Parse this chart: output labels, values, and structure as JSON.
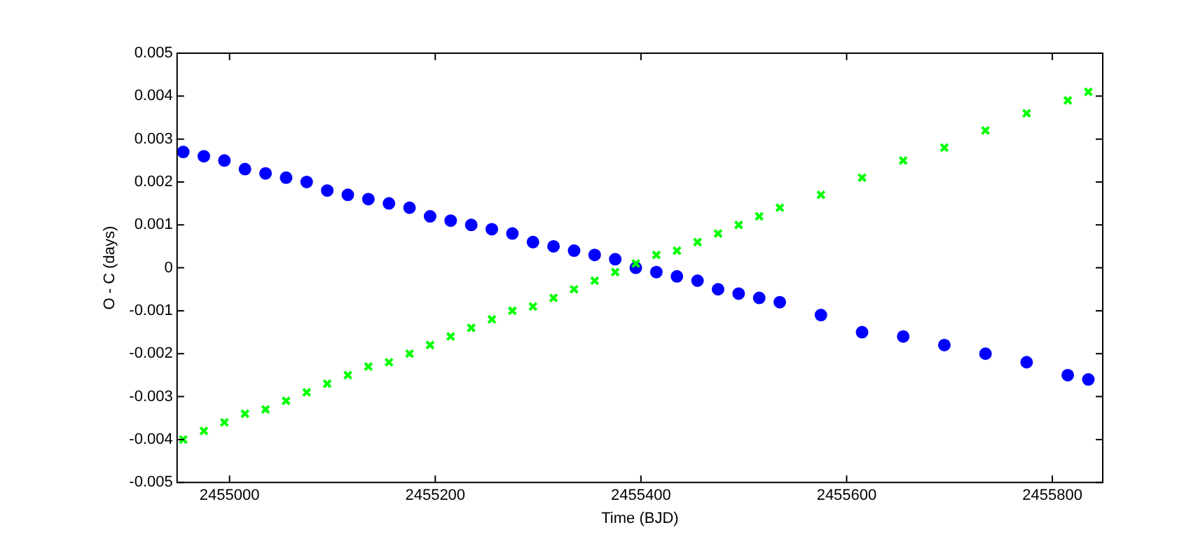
{
  "chart_data": {
    "type": "scatter",
    "xlabel": "Time (BJD)",
    "ylabel": "O - C (days)",
    "xlim": [
      2454949,
      2455849
    ],
    "xticks": [
      2455000,
      2455200,
      2455400,
      2455600,
      2455800
    ],
    "ylim": [
      -0.005,
      0.005
    ],
    "yticks": [
      -0.005,
      -0.004,
      -0.003,
      -0.002,
      -0.001,
      0,
      0.001,
      0.002,
      0.003,
      0.004,
      0.005
    ],
    "grid": false,
    "legend": false,
    "x": [
      2454955,
      2454975,
      2454995,
      2455015,
      2455035,
      2455055,
      2455075,
      2455095,
      2455115,
      2455135,
      2455155,
      2455175,
      2455195,
      2455215,
      2455235,
      2455255,
      2455275,
      2455295,
      2455315,
      2455335,
      2455355,
      2455375,
      2455395,
      2455415,
      2455435,
      2455455,
      2455475,
      2455495,
      2455515,
      2455535,
      2455575,
      2455615,
      2455655,
      2455695,
      2455735,
      2455775,
      2455815,
      2455835
    ],
    "series": [
      {
        "color": "#0000ff",
        "marker": "circle",
        "values": [
          0.0027,
          0.0026,
          0.0025,
          0.0023,
          0.0022,
          0.0021,
          0.002,
          0.0018,
          0.0017,
          0.0016,
          0.0015,
          0.0014,
          0.0012,
          0.0011,
          0.001,
          0.0009,
          0.0008,
          0.0006,
          0.0005,
          0.0004,
          0.0003,
          0.0002,
          0.0,
          -0.0001,
          -0.0002,
          -0.0003,
          -0.0005,
          -0.0006,
          -0.0007,
          -0.0008,
          -0.0011,
          -0.0015,
          -0.0016,
          -0.0018,
          -0.002,
          -0.0022,
          -0.0025,
          -0.0026
        ]
      },
      {
        "color": "#00ff00",
        "marker": "cross",
        "values": [
          -0.004,
          -0.0038,
          -0.0036,
          -0.0034,
          -0.0033,
          -0.0031,
          -0.0029,
          -0.0027,
          -0.0025,
          -0.0023,
          -0.0022,
          -0.002,
          -0.0018,
          -0.0016,
          -0.0014,
          -0.0012,
          -0.001,
          -0.0009,
          -0.0007,
          -0.0005,
          -0.0003,
          -0.0001,
          0.0001,
          0.0003,
          0.0004,
          0.0006,
          0.0008,
          0.001,
          0.0012,
          0.0014,
          0.0017,
          0.0021,
          0.0025,
          0.0028,
          0.0032,
          0.0036,
          0.0039,
          0.0041
        ]
      }
    ]
  }
}
